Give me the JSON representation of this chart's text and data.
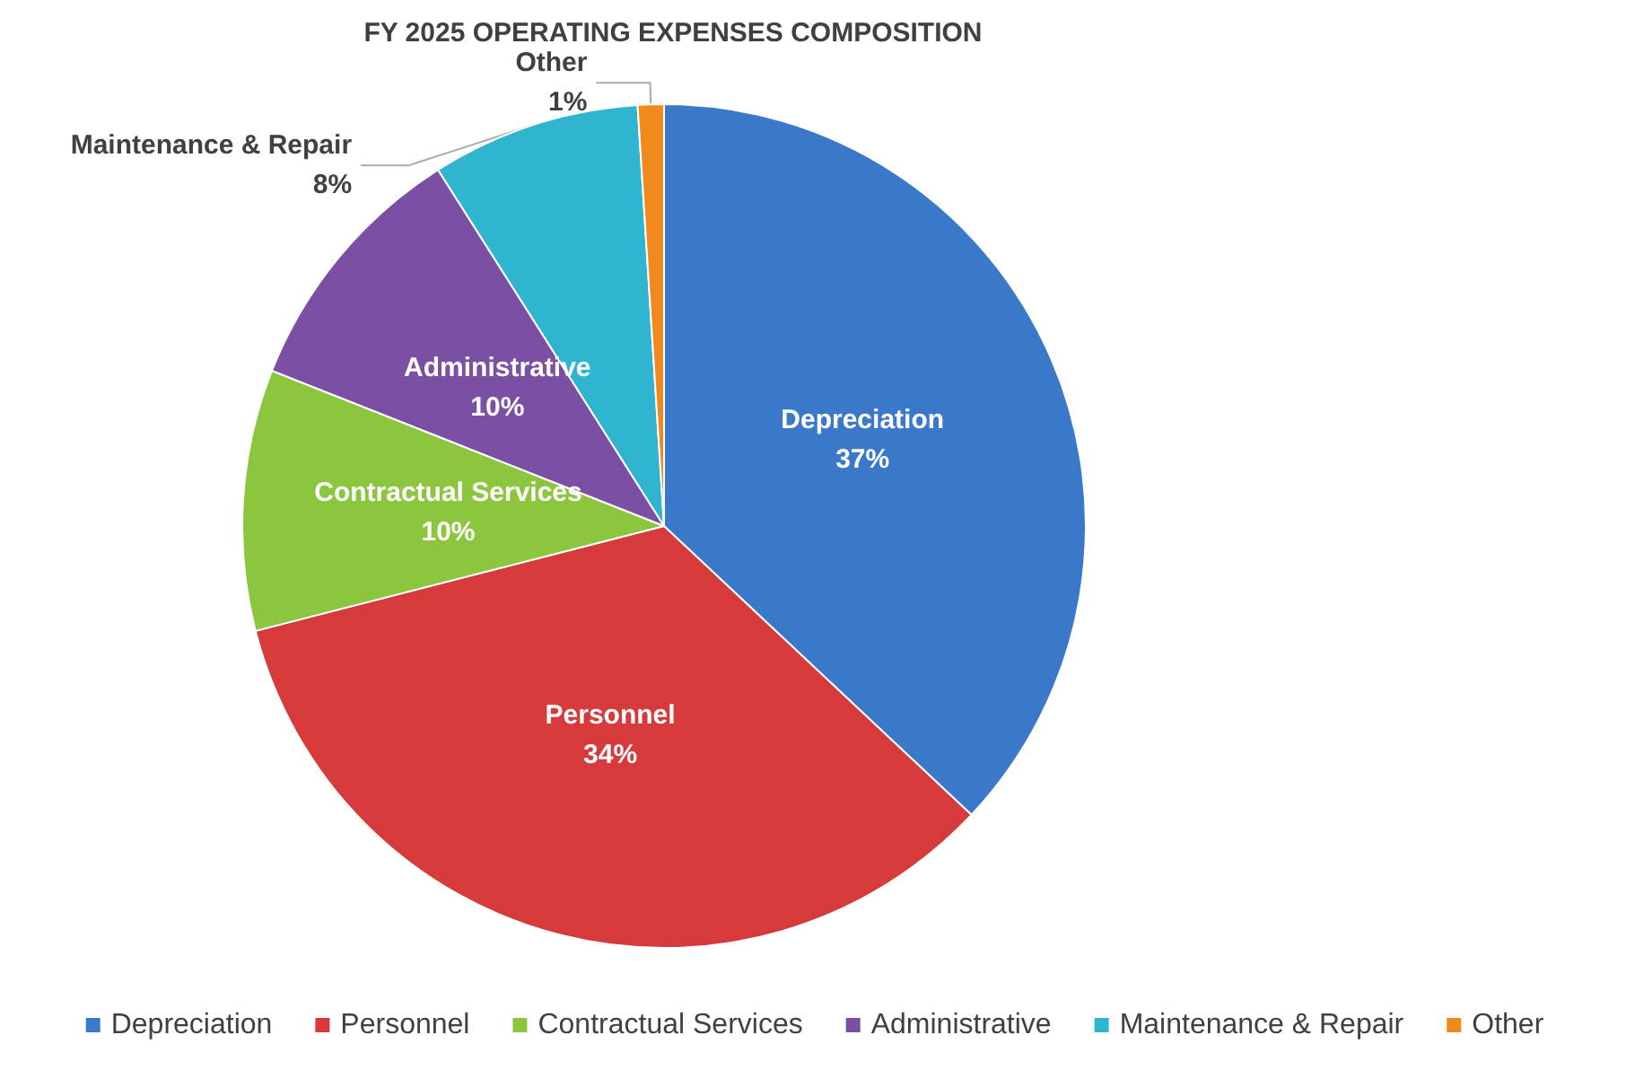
{
  "chart_data": {
    "type": "pie",
    "title": "FY 2025 OPERATING EXPENSES COMPOSITION",
    "categories": [
      "Depreciation",
      "Personnel",
      "Contractual Services",
      "Administrative",
      "Maintenance & Repair",
      "Other"
    ],
    "values": [
      37,
      34,
      10,
      10,
      8,
      1
    ],
    "value_labels": [
      "37%",
      "34%",
      "10%",
      "10%",
      "8%",
      "1%"
    ],
    "colors": [
      "#3a78c9",
      "#d63a3a",
      "#8cc63f",
      "#7b4fa3",
      "#2fb5d0",
      "#f08a1c"
    ],
    "legend": "bottom"
  }
}
